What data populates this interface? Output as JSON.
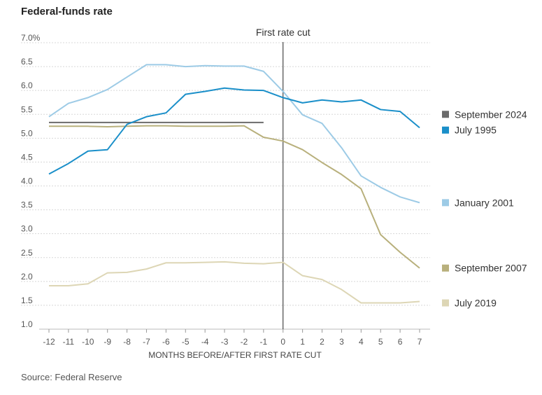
{
  "title": "Federal-funds rate",
  "source": "Source: Federal Reserve",
  "chart_data": {
    "type": "line",
    "title": "Federal-funds rate",
    "xlabel": "MONTHS BEFORE/AFTER FIRST RATE CUT",
    "ylabel": "",
    "annotation": "First rate cut",
    "x": [
      -12,
      -11,
      -10,
      -9,
      -8,
      -7,
      -6,
      -5,
      -4,
      -3,
      -2,
      -1,
      0,
      1,
      2,
      3,
      4,
      5,
      6,
      7
    ],
    "xlim": [
      -12,
      7
    ],
    "ylim": [
      1.0,
      7.0
    ],
    "y_ticks": [
      "7.0%",
      "6.5",
      "6.0",
      "5.5",
      "5.0",
      "4.5",
      "4.0",
      "3.5",
      "3.0",
      "2.5",
      "2.0",
      "1.5",
      "1.0"
    ],
    "y_tick_values": [
      7.0,
      6.5,
      6.0,
      5.5,
      5.0,
      4.5,
      4.0,
      3.5,
      3.0,
      2.5,
      2.0,
      1.5,
      1.0
    ],
    "grid": true,
    "legend": "right, labels at series end",
    "series": [
      {
        "name": "September 2024",
        "color": "#6b6b6b",
        "values": [
          5.33,
          5.33,
          5.33,
          5.33,
          5.33,
          5.33,
          5.33,
          5.33,
          5.33,
          5.33,
          5.33,
          5.33,
          null,
          null,
          null,
          null,
          null,
          null,
          null,
          null
        ],
        "legend_y": 5.5
      },
      {
        "name": "July 1995",
        "color": "#1a8fc9",
        "values": [
          4.25,
          4.47,
          4.73,
          4.76,
          5.29,
          5.45,
          5.53,
          5.92,
          5.98,
          6.05,
          6.01,
          6.0,
          5.85,
          5.74,
          5.8,
          5.76,
          5.8,
          5.6,
          5.56,
          5.22
        ],
        "legend_y": 5.17
      },
      {
        "name": "January 2001",
        "color": "#9dcbe6",
        "values": [
          5.45,
          5.73,
          5.85,
          6.02,
          6.28,
          6.54,
          6.54,
          6.5,
          6.52,
          6.51,
          6.51,
          6.4,
          5.98,
          5.49,
          5.31,
          4.8,
          4.21,
          3.97,
          3.77,
          3.65
        ],
        "legend_y": 3.65
      },
      {
        "name": "September 2007",
        "color": "#b8b07c",
        "values": [
          5.25,
          5.25,
          5.25,
          5.24,
          5.25,
          5.26,
          5.26,
          5.25,
          5.25,
          5.25,
          5.26,
          5.02,
          4.94,
          4.76,
          4.49,
          4.24,
          3.94,
          2.98,
          2.61,
          2.28
        ],
        "legend_y": 2.28
      },
      {
        "name": "July 2019",
        "color": "#ddd6b5",
        "values": [
          1.91,
          1.91,
          1.95,
          2.18,
          2.19,
          2.26,
          2.39,
          2.39,
          2.4,
          2.41,
          2.38,
          2.37,
          2.4,
          2.12,
          2.04,
          1.83,
          1.55,
          1.55,
          1.55,
          1.58
        ],
        "legend_y": 1.55
      }
    ]
  }
}
